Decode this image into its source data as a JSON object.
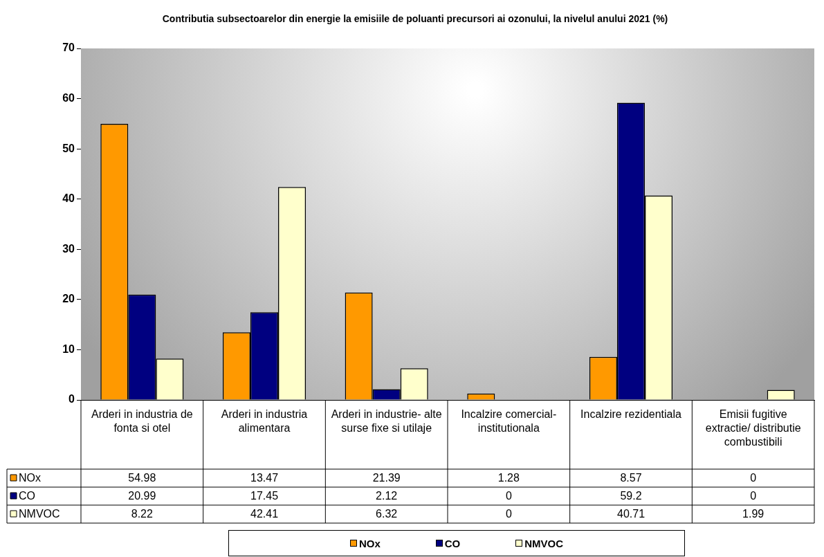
{
  "chart_data": {
    "type": "bar",
    "title": "Contributia subsectoarelor din energie la emisiile de poluanti precursori ai ozonului, la nivelul anului 2021 (%)",
    "categories": [
      "Arderi in industria de fonta si otel",
      "Arderi in industria alimentara",
      "Arderi in industrie- alte surse fixe si utilaje",
      "Incalzire comercial- institutionala",
      "Incalzire rezidentiala",
      "Emisii fugitive extractie/ distributie combustibili"
    ],
    "series": [
      {
        "name": "NOx",
        "color": "#ff9900",
        "values": [
          54.98,
          13.47,
          21.39,
          1.28,
          8.57,
          0
        ]
      },
      {
        "name": "CO",
        "color": "#000080",
        "values": [
          20.99,
          17.45,
          2.12,
          0,
          59.2,
          0
        ]
      },
      {
        "name": "NMVOC",
        "color": "#ffffcc",
        "values": [
          8.22,
          42.41,
          6.32,
          0,
          40.71,
          1.99
        ]
      }
    ],
    "ylim": [
      0,
      70
    ],
    "yticks": [
      0,
      10,
      20,
      30,
      40,
      50,
      60,
      70
    ],
    "grid": false,
    "legend": "bottom",
    "data_labels": true
  }
}
